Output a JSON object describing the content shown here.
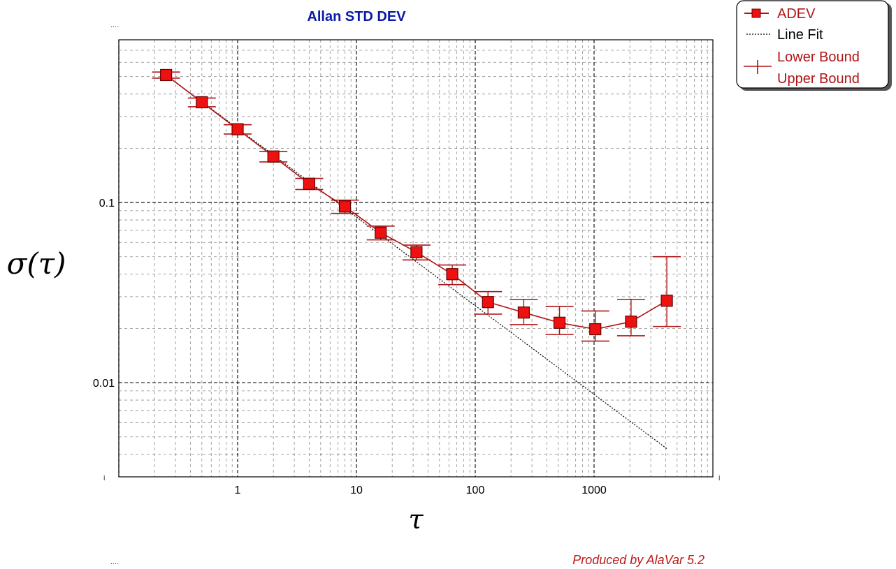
{
  "colors": {
    "title": "#0a1aa6",
    "series": "#b01515",
    "marker_fill": "#ee1111",
    "marker_stroke": "#6a0000",
    "grid": "#000000",
    "fit": "#000000",
    "credit": "#c01818"
  },
  "chart_data": {
    "type": "line",
    "title": "Allan STD DEV",
    "xlabel": "τ",
    "ylabel": "σ(τ)",
    "x_scale": "log",
    "y_scale": "log",
    "xlim": [
      0.1,
      10000
    ],
    "ylim": [
      0.003,
      0.8
    ],
    "x_ticks": [
      {
        "value": 1,
        "label": "1"
      },
      {
        "value": 10,
        "label": "10"
      },
      {
        "value": 100,
        "label": "100"
      },
      {
        "value": 1000,
        "label": "1000"
      }
    ],
    "y_ticks": [
      {
        "value": 0.1,
        "label": "0.1"
      },
      {
        "value": 0.01,
        "label": "0.01"
      }
    ],
    "corner_marks": {
      "top": "....",
      "bottom": "....",
      "left": "i",
      "right": "i"
    },
    "grid": true,
    "legend_position": "top-right",
    "series": [
      {
        "name": "ADEV",
        "x": [
          0.25,
          0.5,
          1,
          2,
          4,
          8,
          16,
          32,
          64,
          128,
          256,
          512,
          1024,
          2048,
          4096
        ],
        "y": [
          0.51,
          0.36,
          0.255,
          0.18,
          0.127,
          0.095,
          0.068,
          0.053,
          0.04,
          0.028,
          0.0245,
          0.0215,
          0.0198,
          0.0218,
          0.0285
        ],
        "lower": [
          0.49,
          0.34,
          0.24,
          0.168,
          0.118,
          0.087,
          0.062,
          0.048,
          0.035,
          0.024,
          0.021,
          0.0185,
          0.017,
          0.0182,
          0.0205
        ],
        "upper": [
          0.53,
          0.38,
          0.27,
          0.192,
          0.136,
          0.103,
          0.074,
          0.058,
          0.045,
          0.032,
          0.029,
          0.0265,
          0.025,
          0.029,
          0.05
        ]
      },
      {
        "name": "Line Fit",
        "x": [
          0.25,
          4096
        ],
        "y": [
          0.51,
          0.0043
        ]
      }
    ],
    "legend": [
      {
        "label": "ADEV",
        "kind": "marker-line"
      },
      {
        "label": "Line Fit",
        "kind": "dotted-line"
      },
      {
        "label": "Lower Bound",
        "kind": "errorbar"
      },
      {
        "label": "Upper Bound",
        "kind": "errorbar"
      }
    ],
    "credit": "Produced by AlaVar 5.2"
  }
}
